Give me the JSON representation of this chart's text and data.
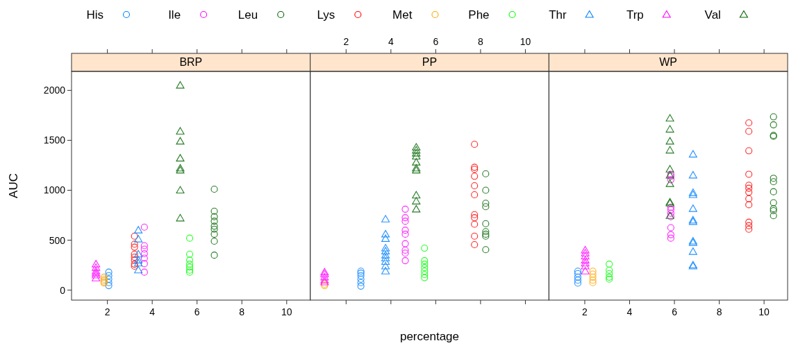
{
  "chart_data": [
    {
      "type": "scatter",
      "title": "BRP",
      "ylabel": "AUC",
      "legend": "top",
      "xlim": [
        0.4,
        11.05
      ],
      "ylim": [
        -100,
        2190
      ],
      "xticks": [
        2,
        4,
        6,
        8,
        10
      ],
      "yticks": [
        0,
        500,
        1000,
        1500,
        2000
      ],
      "grid": false,
      "series": [
        {
          "name": "His",
          "color": "#0080ff",
          "marker": "circle",
          "x": [
            2.06,
            2.06,
            2.06,
            2.06,
            2.06
          ],
          "values": [
            180,
            145,
            110,
            75,
            45
          ]
        },
        {
          "name": "Ile",
          "color": "#ff00ff",
          "marker": "circle",
          "x": [
            3.65,
            3.65,
            3.65,
            3.65,
            3.65,
            3.65,
            3.65
          ],
          "values": [
            630,
            445,
            410,
            365,
            320,
            265,
            180
          ]
        },
        {
          "name": "Leu",
          "color": "#006400",
          "marker": "circle",
          "x": [
            6.77,
            6.77,
            6.77,
            6.77,
            6.77,
            6.77,
            6.77,
            6.77,
            6.77
          ],
          "values": [
            1010,
            790,
            735,
            690,
            640,
            610,
            560,
            490,
            350
          ]
        },
        {
          "name": "Lys",
          "color": "#ff0000",
          "marker": "circle",
          "x": [
            3.21,
            3.21,
            3.21,
            3.21,
            3.21,
            3.21,
            3.21,
            3.21
          ],
          "values": [
            540,
            460,
            430,
            360,
            330,
            300,
            260,
            240
          ]
        },
        {
          "name": "Met",
          "color": "#ffa500",
          "marker": "circle",
          "x": [
            1.85,
            1.85,
            1.85,
            1.85,
            1.85
          ],
          "values": [
            130,
            110,
            95,
            80,
            70
          ]
        },
        {
          "name": "Phe",
          "color": "#00ff00",
          "marker": "circle",
          "x": [
            5.67,
            5.67,
            5.67,
            5.67,
            5.67,
            5.67,
            5.67
          ],
          "values": [
            520,
            360,
            300,
            260,
            230,
            200,
            180
          ]
        },
        {
          "name": "Thr",
          "color": "#0080ff",
          "marker": "triangle",
          "x": [
            3.38,
            3.38,
            3.38,
            3.38,
            3.38,
            3.38
          ],
          "values": [
            600,
            510,
            360,
            300,
            270,
            200
          ]
        },
        {
          "name": "Trp",
          "color": "#ff00ff",
          "marker": "triangle",
          "x": [
            1.49,
            1.49,
            1.49,
            1.49,
            1.49,
            1.49
          ],
          "values": [
            260,
            225,
            190,
            170,
            150,
            120
          ]
        },
        {
          "name": "Val",
          "color": "#006400",
          "marker": "triangle",
          "x": [
            5.25,
            5.25,
            5.25,
            5.25,
            5.25,
            5.25,
            5.25,
            5.25
          ],
          "values": [
            2050,
            1590,
            1490,
            1320,
            1220,
            1200,
            1000,
            720
          ]
        }
      ]
    },
    {
      "type": "scatter",
      "title": "PP",
      "xlabel": "percentage",
      "tick_labels": "x",
      "xlim": [
        0.4,
        11.05
      ],
      "ylim": [
        -100,
        2190
      ],
      "xticks": [
        2,
        4,
        6,
        8,
        10
      ],
      "yticks": [
        0,
        500,
        1000,
        1500,
        2000
      ],
      "grid": false,
      "series": [
        {
          "color": "#0080ff",
          "marker": "circle",
          "x": [
            2.66,
            2.66,
            2.66,
            2.66,
            2.66,
            2.66
          ],
          "values": [
            190,
            170,
            145,
            110,
            75,
            40
          ]
        },
        {
          "color": "#ff00ff",
          "marker": "circle",
          "x": [
            4.64,
            4.64,
            4.64,
            4.64,
            4.64,
            4.64,
            4.64,
            4.64,
            4.64
          ],
          "values": [
            810,
            725,
            690,
            600,
            560,
            465,
            400,
            370,
            295
          ]
        },
        {
          "color": "#006400",
          "marker": "circle",
          "x": [
            8.23,
            8.23,
            8.23,
            8.23,
            8.23,
            8.23,
            8.23,
            8.23,
            8.23
          ],
          "values": [
            1165,
            1000,
            870,
            835,
            665,
            585,
            560,
            540,
            405
          ]
        },
        {
          "color": "#ff0000",
          "marker": "circle",
          "x": [
            7.73,
            7.73,
            7.73,
            7.73,
            7.73,
            7.73,
            7.73,
            7.73,
            7.73,
            7.73,
            7.73
          ],
          "values": [
            1460,
            1230,
            1210,
            1140,
            1045,
            955,
            755,
            725,
            660,
            540,
            455
          ]
        },
        {
          "color": "#ffa500",
          "marker": "circle",
          "x": [
            1.04,
            1.04
          ],
          "values": [
            60,
            45
          ]
        },
        {
          "color": "#00ff00",
          "marker": "circle",
          "x": [
            5.5,
            5.5,
            5.5,
            5.5,
            5.5,
            5.5,
            5.5
          ],
          "values": [
            420,
            295,
            260,
            225,
            190,
            155,
            125
          ]
        },
        {
          "color": "#0080ff",
          "marker": "triangle",
          "x": [
            3.76,
            3.76,
            3.76,
            3.76,
            3.76,
            3.76,
            3.76,
            3.76,
            3.76,
            3.76
          ],
          "values": [
            710,
            560,
            515,
            420,
            390,
            350,
            320,
            285,
            240,
            190
          ]
        },
        {
          "color": "#ff00ff",
          "marker": "triangle",
          "x": [
            1.04,
            1.04,
            1.04,
            1.04,
            1.04
          ],
          "values": [
            180,
            160,
            130,
            100,
            80
          ]
        },
        {
          "color": "#006400",
          "marker": "triangle",
          "x": [
            5.13,
            5.13,
            5.13,
            5.13,
            5.13,
            5.13,
            5.13,
            5.13,
            5.13,
            5.13
          ],
          "values": [
            1430,
            1400,
            1370,
            1340,
            1280,
            1220,
            1200,
            950,
            890,
            810
          ]
        }
      ]
    },
    {
      "type": "scatter",
      "title": "WP",
      "tick_labels": "x",
      "xlim": [
        0.4,
        11.05
      ],
      "ylim": [
        -100,
        2190
      ],
      "xticks": [
        2,
        4,
        6,
        8,
        10
      ],
      "yticks": [
        0,
        500,
        1000,
        1500,
        2000
      ],
      "grid": false,
      "series": [
        {
          "color": "#0080ff",
          "marker": "circle",
          "x": [
            1.69,
            1.69,
            1.69,
            1.69,
            1.69
          ],
          "values": [
            190,
            165,
            130,
            100,
            70
          ]
        },
        {
          "color": "#ff00ff",
          "marker": "circle",
          "x": [
            5.84,
            5.84,
            5.84,
            5.84,
            5.84,
            5.84,
            5.84,
            5.84,
            5.84,
            5.84
          ],
          "values": [
            1160,
            1140,
            1105,
            830,
            805,
            770,
            735,
            625,
            555,
            520
          ]
        },
        {
          "color": "#006400",
          "marker": "circle",
          "x": [
            10.42,
            10.42,
            10.42,
            10.42,
            10.42,
            10.42,
            10.42,
            10.42,
            10.42,
            10.42,
            10.42
          ],
          "values": [
            1735,
            1655,
            1550,
            1540,
            1120,
            1085,
            985,
            875,
            815,
            795,
            745
          ]
        },
        {
          "color": "#ff0000",
          "marker": "circle",
          "x": [
            9.32,
            9.32,
            9.32,
            9.32,
            9.32,
            9.32,
            9.32,
            9.32,
            9.32,
            9.32,
            9.32,
            9.32
          ],
          "values": [
            1675,
            1590,
            1395,
            1160,
            1050,
            1020,
            980,
            915,
            855,
            680,
            645,
            610
          ]
        },
        {
          "color": "#ffa500",
          "marker": "circle",
          "x": [
            2.36,
            2.36,
            2.36,
            2.36,
            2.36
          ],
          "values": [
            190,
            160,
            130,
            100,
            75
          ]
        },
        {
          "color": "#00ff00",
          "marker": "circle",
          "x": [
            3.09,
            3.09,
            3.09,
            3.09,
            3.09
          ],
          "values": [
            260,
            200,
            165,
            130,
            110
          ]
        },
        {
          "color": "#0080ff",
          "marker": "triangle",
          "x": [
            6.83,
            6.83,
            6.83,
            6.83,
            6.83,
            6.83,
            6.83,
            6.83,
            6.83,
            6.83,
            6.83,
            6.83
          ],
          "values": [
            1360,
            1150,
            975,
            955,
            815,
            700,
            685,
            490,
            475,
            385,
            250,
            240
          ]
        },
        {
          "color": "#ff00ff",
          "marker": "triangle",
          "x": [
            2.02,
            2.02,
            2.02,
            2.02,
            2.02,
            2.02,
            2.02
          ],
          "values": [
            400,
            370,
            340,
            300,
            270,
            240,
            190
          ]
        },
        {
          "color": "#006400",
          "marker": "triangle",
          "x": [
            5.8,
            5.8,
            5.8,
            5.8,
            5.8,
            5.8,
            5.8,
            5.8,
            5.8,
            5.8
          ],
          "values": [
            1720,
            1610,
            1490,
            1400,
            1210,
            1150,
            1065,
            880,
            870,
            745
          ]
        }
      ]
    }
  ]
}
